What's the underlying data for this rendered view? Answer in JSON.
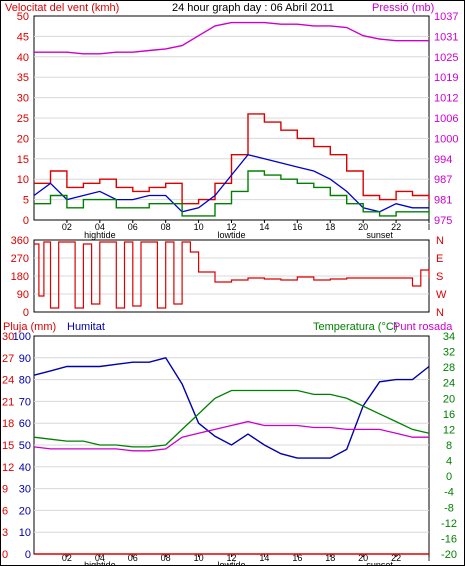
{
  "header": {
    "left_title": "Velocitat del vent (kmh)",
    "center_title": "24 hour graph day : 06 Abril 2011",
    "right_title": "Pressió (mb)"
  },
  "colors": {
    "wind": "#dd0000",
    "gust_outline": "#0000cc",
    "avg": "#008000",
    "pressure": "#cc00cc",
    "humidity": "#0000aa",
    "temperature": "#008000",
    "dewpoint": "#cc00cc",
    "rain": "#dd0000"
  },
  "chart_data": [
    {
      "type": "line",
      "title": "24 hour graph day : 06 Abril 2011",
      "left_axis_label": "Velocitat del vent (kmh)",
      "right_axis_label": "Pressió (mb)",
      "left_ticks": [
        0,
        5,
        10,
        15,
        20,
        25,
        30,
        35,
        40,
        45,
        50
      ],
      "right_ticks": [
        975,
        981,
        987,
        994,
        1000,
        1006,
        1012,
        1019,
        1025,
        1031,
        1037
      ],
      "x_ticks": [
        "02",
        "04",
        "06",
        "08",
        "10",
        "12",
        "14",
        "16",
        "18",
        "20",
        "22",
        "I"
      ],
      "x_events": [
        "hightide",
        "lowtide",
        "sunset"
      ],
      "ylim_left": [
        0,
        50
      ],
      "ylim_right": [
        975,
        1037
      ],
      "hours": [
        0,
        1,
        2,
        3,
        4,
        5,
        6,
        7,
        8,
        9,
        10,
        11,
        12,
        13,
        14,
        15,
        16,
        17,
        18,
        19,
        20,
        21,
        22,
        23,
        24
      ],
      "series": [
        {
          "name": "Velocitat del vent (kmh)",
          "values": [
            9,
            12,
            8,
            9,
            10,
            8,
            7,
            8,
            9,
            4,
            5,
            9,
            16,
            26,
            24,
            22,
            20,
            18,
            16,
            12,
            6,
            5,
            7,
            6,
            5
          ]
        },
        {
          "name": "",
          "values": [
            6,
            9,
            5,
            6,
            7,
            5,
            5,
            6,
            6,
            2,
            3,
            6,
            11,
            16,
            15,
            14,
            13,
            12,
            10,
            7,
            3,
            2,
            4,
            3,
            3
          ]
        },
        {
          "name": "",
          "values": [
            4,
            6,
            3,
            5,
            5,
            3,
            3,
            4,
            4,
            1,
            1,
            4,
            7,
            12,
            11,
            10,
            9,
            8,
            6,
            4,
            2,
            1,
            2,
            2,
            1
          ]
        },
        {
          "name": "Pressió (mb)",
          "values": [
            1026,
            1026,
            1026,
            1025.5,
            1025.5,
            1026,
            1026,
            1026.5,
            1027,
            1028,
            1031,
            1034,
            1035,
            1035,
            1035,
            1034.5,
            1034.5,
            1034,
            1034,
            1033.5,
            1031,
            1030,
            1029.5,
            1029.5,
            1029.5
          ]
        }
      ]
    },
    {
      "type": "line",
      "left_ticks": [
        0,
        90,
        180,
        270,
        360
      ],
      "right_labels": [
        "N",
        "W",
        "S",
        "E",
        "N"
      ],
      "ylim_left": [
        0,
        360
      ],
      "hours": [
        0,
        0.3,
        0.6,
        1,
        1.5,
        2,
        2.5,
        3,
        3.5,
        4,
        4.5,
        5,
        5.5,
        6,
        6.5,
        7,
        7.5,
        8,
        8.5,
        9,
        9.5,
        10,
        11,
        12,
        13,
        14,
        15,
        16,
        17,
        18,
        19,
        20,
        21,
        22,
        23,
        23.5,
        24
      ],
      "series": [
        {
          "name": "",
          "values": [
            340,
            80,
            350,
            20,
            350,
            350,
            20,
            340,
            40,
            350,
            350,
            20,
            350,
            30,
            350,
            350,
            20,
            350,
            40,
            350,
            300,
            200,
            150,
            160,
            170,
            165,
            160,
            175,
            160,
            165,
            170,
            170,
            170,
            170,
            130,
            210,
            170
          ]
        }
      ]
    },
    {
      "type": "line",
      "left_axis_label": "Pluja (mm)",
      "humidity_label": "Humitat",
      "right_axis_label": "Temperatura (°C)",
      "dewpoint_label": "Punt rosada",
      "rain_ticks": [
        0,
        3,
        6,
        9,
        12,
        15,
        18,
        21,
        24,
        27,
        30
      ],
      "humidity_ticks": [
        0,
        10,
        20,
        30,
        40,
        50,
        60,
        70,
        80,
        90,
        100
      ],
      "temperature_ticks": [
        -20,
        -16,
        -12,
        -8,
        -4,
        0,
        4,
        8,
        12,
        16,
        20,
        24,
        28,
        32,
        34
      ],
      "temperature_tick_positions": [
        -20,
        -16,
        -12,
        -8,
        -4,
        0,
        4,
        8,
        12,
        16,
        20,
        24,
        28,
        32,
        36
      ],
      "ylim_humidity": [
        0,
        100
      ],
      "ylim_temperature": [
        -20,
        36
      ],
      "x_ticks": [
        "02",
        "04",
        "06",
        "08",
        "10",
        "12",
        "14",
        "16",
        "18",
        "20",
        "22",
        "I"
      ],
      "x_events": [
        "hightide",
        "lowtide",
        "sunset"
      ],
      "hours": [
        0,
        1,
        2,
        3,
        4,
        5,
        6,
        7,
        8,
        9,
        10,
        11,
        12,
        13,
        14,
        15,
        16,
        17,
        18,
        19,
        20,
        21,
        22,
        23,
        24
      ],
      "series": [
        {
          "name": "Humitat",
          "values": [
            82,
            84,
            86,
            86,
            86,
            87,
            88,
            88,
            90,
            78,
            60,
            54,
            50,
            55,
            50,
            46,
            44,
            44,
            44,
            48,
            68,
            79,
            80,
            80,
            86
          ]
        },
        {
          "name": "Temperatura (°C)",
          "values": [
            10,
            9.5,
            9,
            9,
            8,
            8,
            7.5,
            7.5,
            8,
            12,
            16,
            20,
            22,
            22,
            22,
            22,
            22,
            21,
            21,
            20,
            18,
            16,
            14,
            12,
            11
          ]
        },
        {
          "name": "Punt rosada",
          "values": [
            7.5,
            7,
            7,
            7,
            7,
            7,
            6.5,
            6.5,
            7,
            10,
            11,
            12,
            13,
            14,
            13,
            13,
            13,
            12.5,
            12.5,
            12,
            12,
            12,
            11,
            10,
            10
          ]
        },
        {
          "name": "Pluja (mm)",
          "values": [
            0,
            0,
            0,
            0,
            0,
            0,
            0,
            0,
            0,
            0,
            0,
            0,
            0,
            0,
            0,
            0,
            0,
            0,
            0,
            0,
            0,
            0,
            0,
            0,
            0
          ]
        }
      ]
    }
  ]
}
